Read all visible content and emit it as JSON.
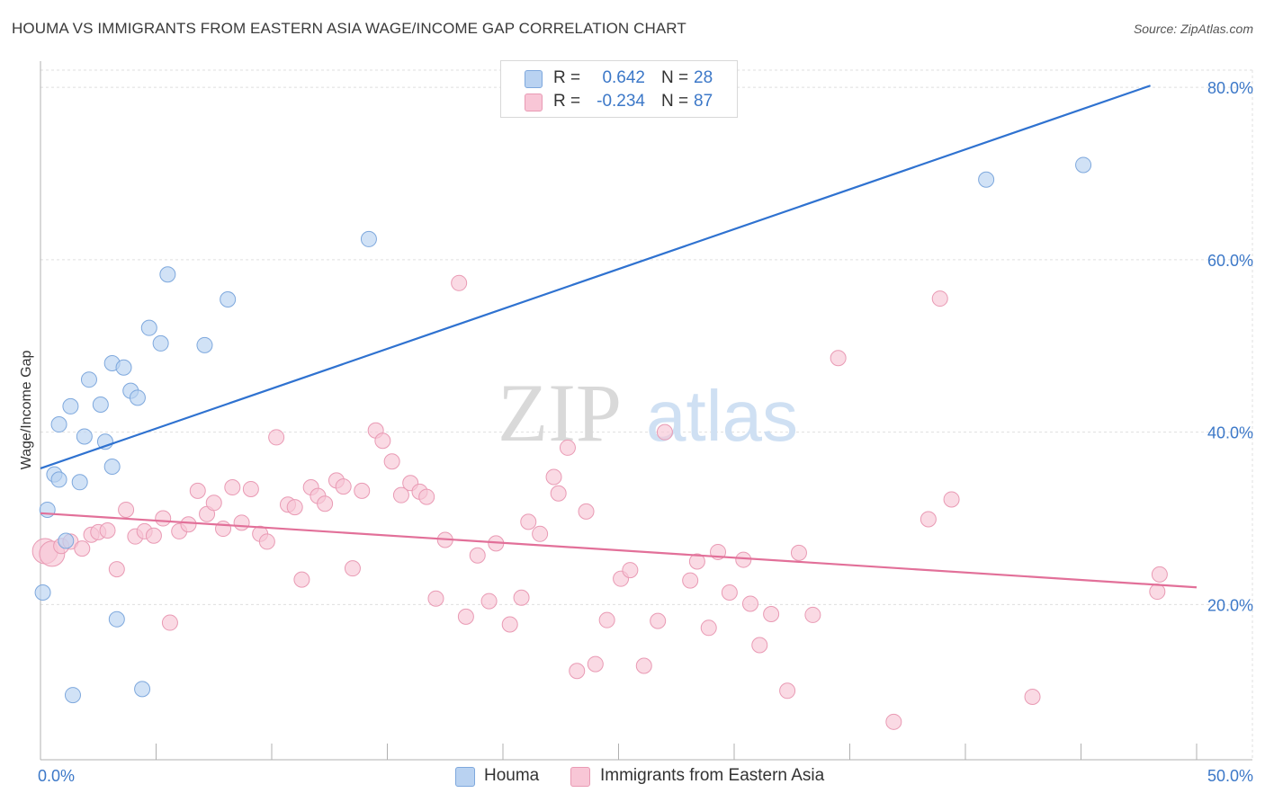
{
  "title": "HOUMA VS IMMIGRANTS FROM EASTERN ASIA WAGE/INCOME GAP CORRELATION CHART",
  "source": "Source: ZipAtlas.com",
  "watermark": {
    "zip": "ZIP",
    "atlas": "atlas"
  },
  "colors": {
    "blue_fill": "#b9d2f1",
    "blue_stroke": "#7ea8dd",
    "blue_line": "#2f72d0",
    "pink_fill": "#f8c6d6",
    "pink_stroke": "#e99ab4",
    "pink_line": "#e27099",
    "axis_label": "#3c78c8",
    "grid": "#dfdfdf"
  },
  "legend": {
    "r_label": "R =",
    "n_label": "N =",
    "houma": {
      "r": "0.642",
      "n": "28"
    },
    "immigrants": {
      "r": "-0.234",
      "n": "87"
    }
  },
  "bottom_legend": {
    "houma": "Houma",
    "immigrants": "Immigrants from Eastern Asia"
  },
  "chart_data": {
    "type": "scatter",
    "title": "HOUMA VS IMMIGRANTS FROM EASTERN ASIA WAGE/INCOME GAP CORRELATION CHART",
    "xlabel": "",
    "ylabel": "Wage/Income Gap",
    "xlim": [
      0,
      50
    ],
    "ylim": [
      2,
      82
    ],
    "x_tick_labels": [
      "0.0%",
      "50.0%"
    ],
    "y_ticks": [
      20,
      40,
      60,
      80
    ],
    "y_tick_labels": [
      "20.0%",
      "40.0%",
      "60.0%",
      "80.0%"
    ],
    "series": [
      {
        "name": "Houma",
        "color": "blue",
        "trend": {
          "x": [
            0,
            48
          ],
          "y": [
            35.8,
            80.2
          ]
        },
        "points": [
          [
            0.1,
            21.4
          ],
          [
            0.3,
            31.0
          ],
          [
            0.6,
            35.1
          ],
          [
            0.8,
            34.5
          ],
          [
            0.8,
            40.9
          ],
          [
            1.1,
            27.4
          ],
          [
            1.3,
            43.0
          ],
          [
            1.4,
            9.5
          ],
          [
            1.7,
            34.2
          ],
          [
            1.9,
            39.5
          ],
          [
            2.1,
            46.1
          ],
          [
            2.6,
            43.2
          ],
          [
            2.8,
            38.9
          ],
          [
            3.1,
            48.0
          ],
          [
            3.1,
            36.0
          ],
          [
            3.3,
            18.3
          ],
          [
            3.6,
            47.5
          ],
          [
            3.9,
            44.8
          ],
          [
            4.2,
            44.0
          ],
          [
            4.4,
            10.2
          ],
          [
            4.7,
            52.1
          ],
          [
            5.2,
            50.3
          ],
          [
            5.5,
            58.3
          ],
          [
            7.1,
            50.1
          ],
          [
            8.1,
            55.4
          ],
          [
            14.2,
            62.4
          ],
          [
            40.9,
            69.3
          ],
          [
            45.1,
            71.0
          ]
        ]
      },
      {
        "name": "Immigrants from Eastern Asia",
        "color": "pink",
        "trend": {
          "x": [
            0,
            50
          ],
          "y": [
            30.6,
            22.0
          ]
        },
        "points": [
          [
            0.2,
            26.2
          ],
          [
            0.5,
            25.9
          ],
          [
            0.9,
            26.8
          ],
          [
            1.3,
            27.3
          ],
          [
            1.8,
            26.5
          ],
          [
            2.2,
            28.1
          ],
          [
            2.5,
            28.4
          ],
          [
            2.9,
            28.6
          ],
          [
            3.3,
            24.1
          ],
          [
            3.7,
            31.0
          ],
          [
            4.1,
            27.9
          ],
          [
            4.5,
            28.5
          ],
          [
            4.9,
            28.0
          ],
          [
            5.3,
            30.0
          ],
          [
            5.6,
            17.9
          ],
          [
            6.0,
            28.5
          ],
          [
            6.4,
            29.3
          ],
          [
            6.8,
            33.2
          ],
          [
            7.2,
            30.5
          ],
          [
            7.5,
            31.8
          ],
          [
            7.9,
            28.8
          ],
          [
            8.3,
            33.6
          ],
          [
            8.7,
            29.5
          ],
          [
            9.1,
            33.4
          ],
          [
            9.5,
            28.2
          ],
          [
            9.8,
            27.3
          ],
          [
            10.2,
            39.4
          ],
          [
            10.7,
            31.6
          ],
          [
            11.0,
            31.3
          ],
          [
            11.3,
            22.9
          ],
          [
            11.7,
            33.6
          ],
          [
            12.0,
            32.6
          ],
          [
            12.3,
            31.7
          ],
          [
            12.8,
            34.4
          ],
          [
            13.1,
            33.7
          ],
          [
            13.5,
            24.2
          ],
          [
            13.9,
            33.2
          ],
          [
            14.5,
            40.2
          ],
          [
            14.8,
            39.0
          ],
          [
            15.2,
            36.6
          ],
          [
            15.6,
            32.7
          ],
          [
            16.0,
            34.1
          ],
          [
            16.4,
            33.1
          ],
          [
            16.7,
            32.5
          ],
          [
            17.1,
            20.7
          ],
          [
            17.5,
            27.5
          ],
          [
            18.1,
            57.3
          ],
          [
            18.4,
            18.6
          ],
          [
            18.9,
            25.7
          ],
          [
            19.4,
            20.4
          ],
          [
            19.7,
            27.1
          ],
          [
            20.3,
            17.7
          ],
          [
            20.8,
            20.8
          ],
          [
            21.1,
            29.6
          ],
          [
            21.6,
            28.2
          ],
          [
            22.2,
            34.8
          ],
          [
            22.4,
            32.9
          ],
          [
            22.8,
            38.2
          ],
          [
            23.2,
            12.3
          ],
          [
            23.6,
            30.8
          ],
          [
            24.0,
            13.1
          ],
          [
            24.5,
            18.2
          ],
          [
            25.1,
            23.0
          ],
          [
            25.5,
            24.0
          ],
          [
            26.1,
            12.9
          ],
          [
            26.7,
            18.1
          ],
          [
            27.0,
            40.0
          ],
          [
            28.1,
            22.8
          ],
          [
            28.4,
            25.0
          ],
          [
            28.9,
            17.3
          ],
          [
            29.3,
            26.1
          ],
          [
            29.8,
            21.4
          ],
          [
            30.4,
            25.2
          ],
          [
            30.7,
            20.1
          ],
          [
            31.1,
            15.3
          ],
          [
            31.6,
            18.9
          ],
          [
            32.3,
            10.0
          ],
          [
            32.8,
            26.0
          ],
          [
            33.4,
            18.8
          ],
          [
            34.5,
            48.6
          ],
          [
            36.9,
            6.4
          ],
          [
            38.4,
            29.9
          ],
          [
            38.9,
            55.5
          ],
          [
            39.4,
            32.2
          ],
          [
            42.9,
            9.3
          ],
          [
            48.3,
            21.5
          ],
          [
            48.4,
            23.5
          ]
        ]
      }
    ]
  }
}
